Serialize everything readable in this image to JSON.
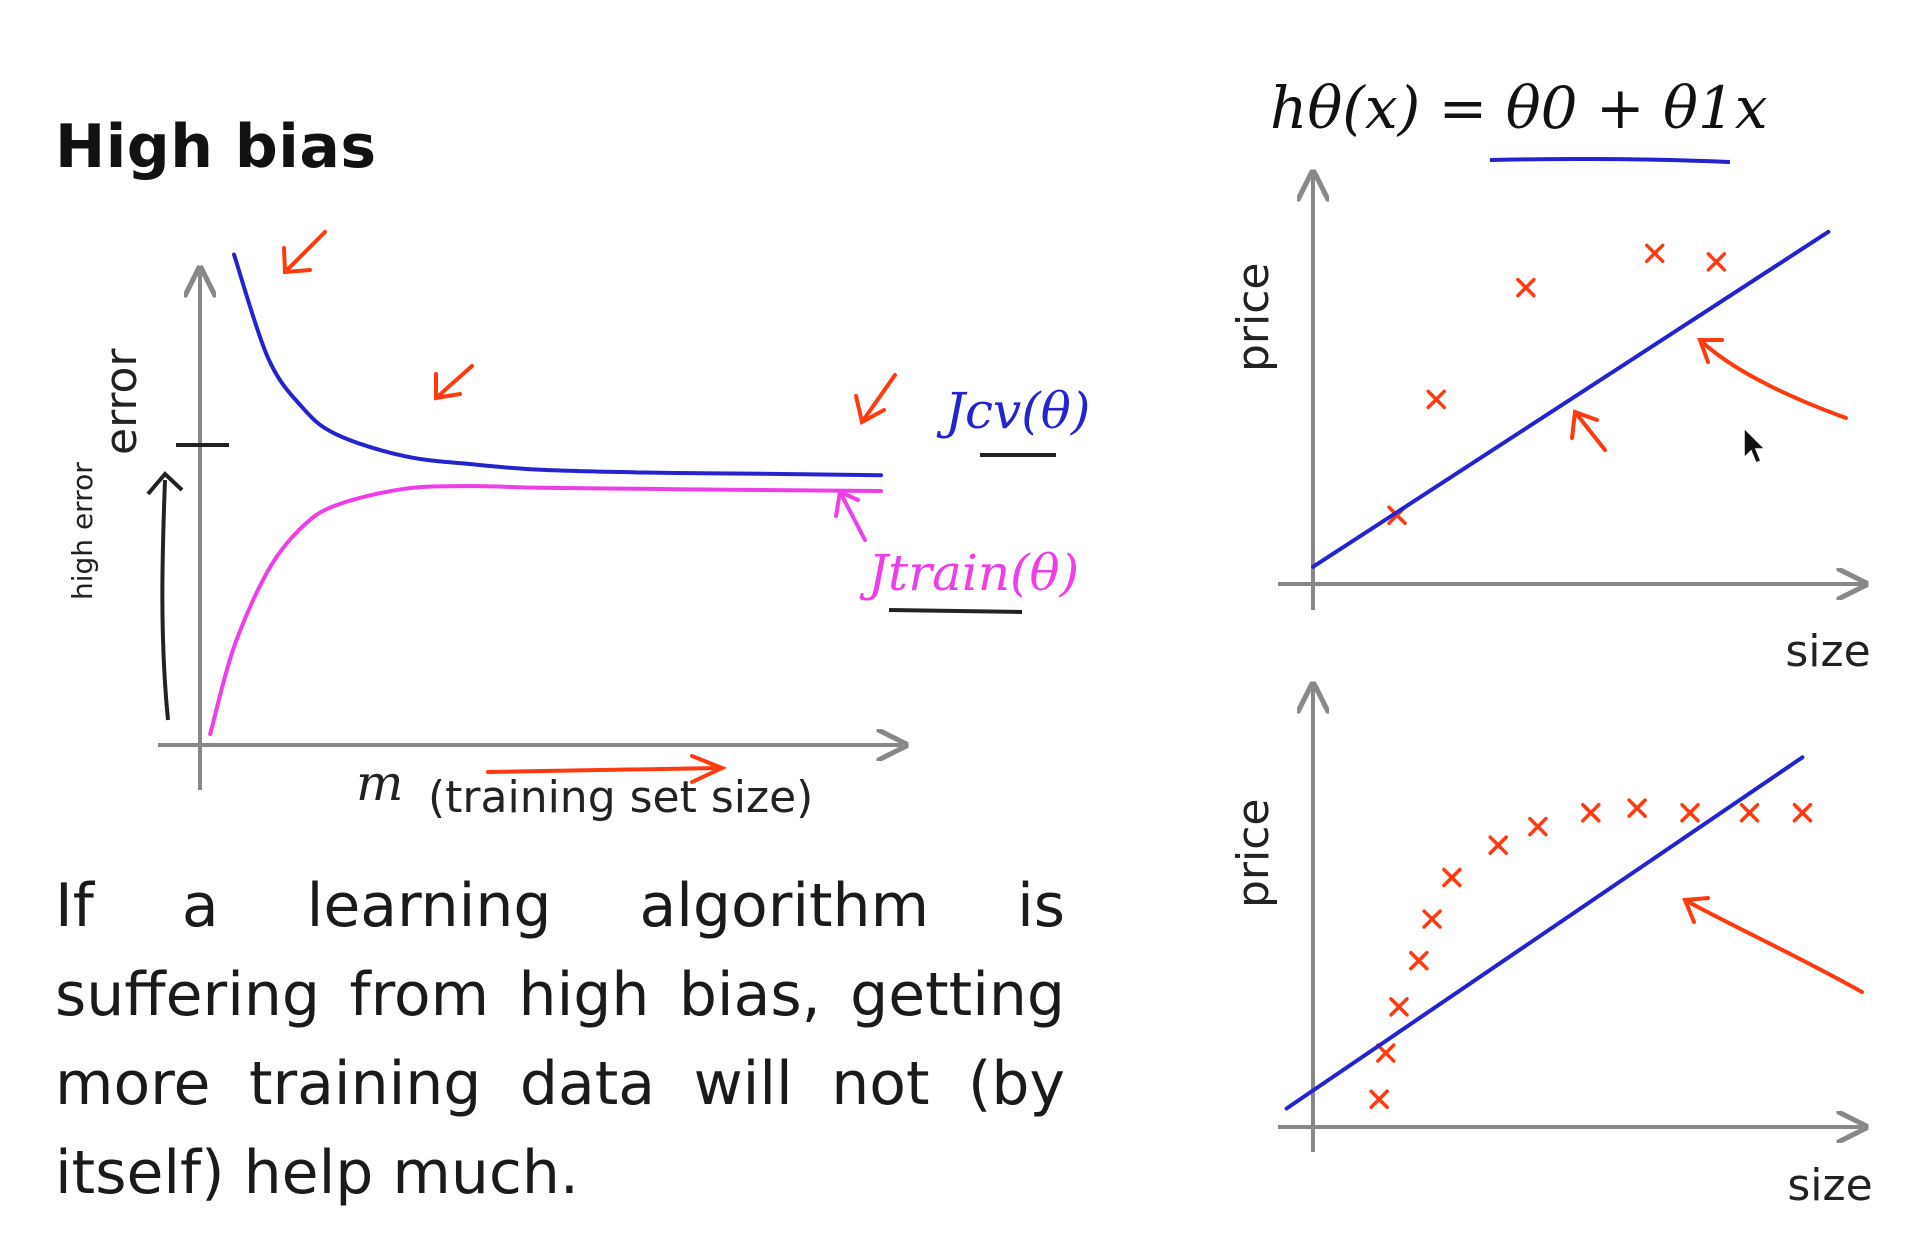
{
  "slide": {
    "title": "High bias",
    "body": "If a learning algorithm is suffering from high bias, getting more training data will not (by itself) help much."
  },
  "learning_curve": {
    "ylabel": "error",
    "xlabel_symbol": "m",
    "xlabel_text": "(training set size)",
    "jcv_label": "Jcv(θ)",
    "jtrain_label": "Jtrain(θ)",
    "margin_note": "high error"
  },
  "hypothesis": {
    "formula": "hθ(x) = θ0 + θ1x"
  },
  "top_plot": {
    "ylabel": "price",
    "xlabel": "size"
  },
  "bottom_plot": {
    "ylabel": "price",
    "xlabel": "size"
  },
  "colors": {
    "jcv": "#2323d0",
    "jtrain": "#ee3ee8",
    "annotation": "#ff3a10",
    "axis": "#888888",
    "text": "#1a1a1a"
  },
  "chart_data": [
    {
      "type": "line",
      "title": "",
      "xlabel": "m (training set size)",
      "ylabel": "error",
      "series": [
        {
          "name": "Jcv(θ)",
          "x": [
            1,
            2,
            3,
            4,
            6,
            8,
            10,
            13,
            16,
            20
          ],
          "y": [
            9.0,
            7.1,
            6.2,
            5.7,
            5.3,
            5.15,
            5.05,
            5.0,
            4.98,
            4.95
          ]
        },
        {
          "name": "Jtrain(θ)",
          "x": [
            0.3,
            1,
            2,
            3,
            4,
            6,
            8,
            10,
            13,
            16,
            20
          ],
          "y": [
            0.2,
            1.8,
            3.2,
            4.0,
            4.4,
            4.7,
            4.75,
            4.72,
            4.7,
            4.68,
            4.66
          ]
        }
      ],
      "xlim": [
        0,
        21
      ],
      "ylim": [
        0,
        10
      ],
      "grid": false
    },
    {
      "type": "scatter",
      "title": "",
      "xlabel": "size",
      "ylabel": "price",
      "series": [
        {
          "kind": "points",
          "x": [
            1.5,
            2.2,
            3.8,
            6.1,
            7.2
          ],
          "y": [
            1.6,
            4.3,
            6.9,
            7.7,
            7.5
          ]
        },
        {
          "kind": "fit_line",
          "x": [
            0,
            9.2
          ],
          "y": [
            0.4,
            8.2
          ]
        }
      ],
      "xlim": [
        0,
        9.8
      ],
      "ylim": [
        0,
        9.5
      ],
      "grid": false
    },
    {
      "type": "scatter",
      "title": "",
      "xlabel": "size",
      "ylabel": "price",
      "series": [
        {
          "kind": "points",
          "x": [
            1.0,
            1.1,
            1.3,
            1.6,
            1.8,
            2.1,
            2.8,
            3.4,
            4.2,
            4.9,
            5.7,
            6.6,
            7.4
          ],
          "y": [
            0.6,
            1.6,
            2.6,
            3.6,
            4.5,
            5.4,
            6.1,
            6.5,
            6.8,
            6.9,
            6.8,
            6.8,
            6.8
          ]
        },
        {
          "kind": "fit_line",
          "x": [
            -0.4,
            7.4
          ],
          "y": [
            0.4,
            8.0
          ]
        }
      ],
      "xlim": [
        0,
        8.3
      ],
      "ylim": [
        0,
        9.5
      ],
      "grid": false
    }
  ]
}
